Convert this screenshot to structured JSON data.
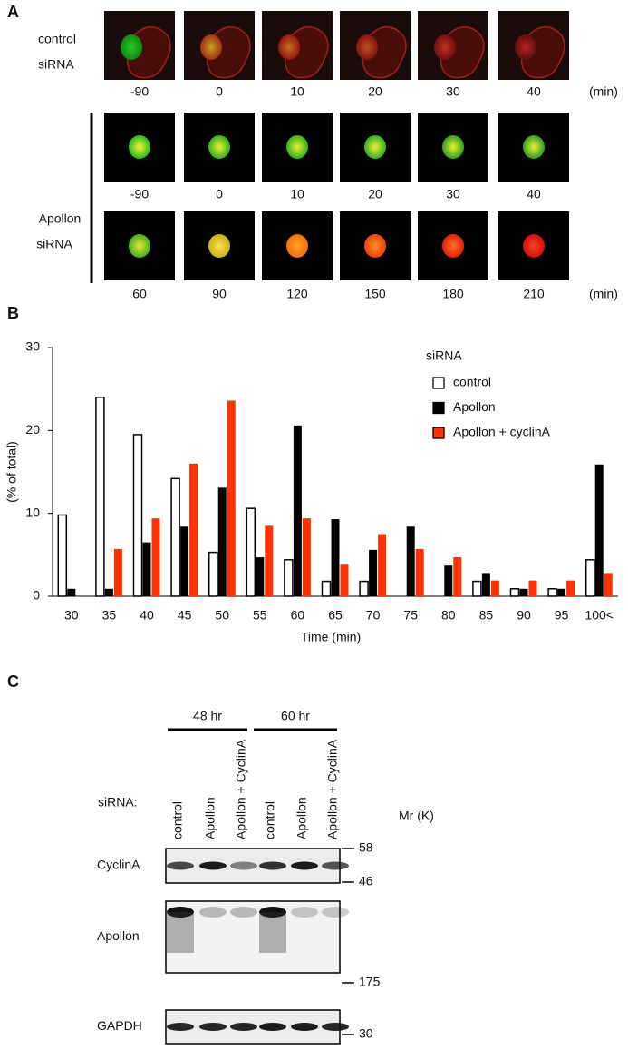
{
  "panel_a": {
    "label": "A",
    "control": {
      "labels": [
        "control",
        "siRNA"
      ],
      "times": [
        -90,
        0,
        10,
        20,
        30,
        40
      ],
      "unit": "(min)"
    },
    "apollon": {
      "labels": [
        "Apollon",
        "siRNA"
      ],
      "rows": [
        [
          -90,
          0,
          10,
          20,
          30,
          40
        ],
        [
          60,
          90,
          120,
          150,
          180,
          210
        ]
      ],
      "unit": "(min)"
    }
  },
  "panel_b": {
    "label": "B"
  },
  "chart_data": {
    "type": "bar",
    "y_label": "(% of total)",
    "x_label": "Time (min)",
    "legend_title": "siRNA",
    "categories": [
      "30",
      "35",
      "40",
      "45",
      "50",
      "55",
      "60",
      "65",
      "70",
      "75",
      "80",
      "85",
      "90",
      "95",
      "100<"
    ],
    "series": [
      {
        "name": "control",
        "color": "#ffffff",
        "values": [
          9.8,
          24,
          19.5,
          14.2,
          5.3,
          10.6,
          4.4,
          1.8,
          1.8,
          0,
          0,
          1.8,
          0.9,
          0.9,
          4.4
        ]
      },
      {
        "name": "Apollon",
        "color": "#000000",
        "values": [
          0.9,
          0.9,
          6.5,
          8.4,
          13.1,
          4.7,
          20.6,
          9.3,
          5.6,
          8.4,
          3.7,
          2.8,
          0.9,
          0.9,
          15.9
        ]
      },
      {
        "name": "Apollon + cyclinA",
        "color": "#ff3300",
        "values": [
          0,
          5.7,
          9.4,
          16,
          23.6,
          8.5,
          9.4,
          3.8,
          7.5,
          5.7,
          4.7,
          1.9,
          1.9,
          1.9,
          2.8
        ]
      }
    ],
    "ylim": [
      0,
      30
    ],
    "yticks": [
      0,
      10,
      20,
      30
    ],
    "grid": false,
    "legend": "top-right"
  },
  "panel_c": {
    "label": "C",
    "row_header": "siRNA:",
    "mr_label": "Mr (K)",
    "groups": [
      "48 hr",
      "60 hr"
    ],
    "lanes": [
      "control",
      "Apollon",
      "Apollon + CyclinA",
      "control",
      "Apollon",
      "Apollon + CyclinA"
    ],
    "blots": [
      {
        "name": "CyclinA",
        "markers": [
          "58",
          "46"
        ]
      },
      {
        "name": "Apollon",
        "markers": [
          "175"
        ]
      },
      {
        "name": "GAPDH",
        "markers": [
          "30"
        ]
      }
    ]
  }
}
